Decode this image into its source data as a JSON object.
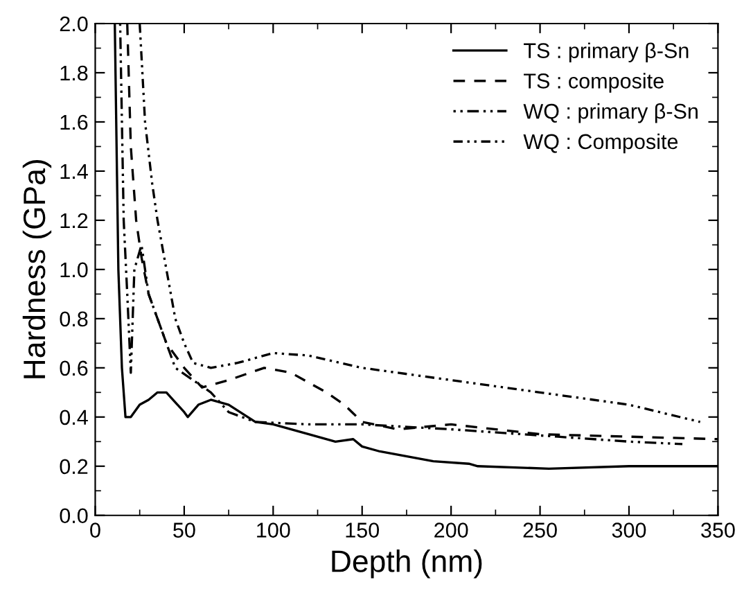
{
  "chart_data": {
    "type": "line",
    "xlabel": "Depth (nm)",
    "ylabel": "Hardness (GPa)",
    "xlim": [
      0,
      350
    ],
    "xticks": [
      0,
      50,
      100,
      150,
      200,
      250,
      300,
      350
    ],
    "ylim": [
      0,
      2.0
    ],
    "yticks": [
      {
        "value": 0,
        "label": "0.0"
      },
      0.2,
      0.4,
      0.6,
      0.8,
      {
        "value": 1,
        "label": "1.0"
      },
      1.2,
      1.4,
      1.6,
      1.8,
      {
        "value": 2,
        "label": "2.0"
      }
    ],
    "grid": false,
    "legend": "top right",
    "series": [
      {
        "name": "TS : primary β-Sn",
        "color": "#000000",
        "line_style": "solid",
        "x": [
          11,
          13,
          15,
          17,
          20,
          25,
          30,
          35,
          40,
          45,
          50,
          52,
          58,
          65,
          75,
          90,
          100,
          120,
          135,
          145,
          150,
          160,
          190,
          210,
          215,
          255,
          300,
          350
        ],
        "values": [
          2.0,
          1.0,
          0.6,
          0.4,
          0.4,
          0.45,
          0.47,
          0.5,
          0.5,
          0.46,
          0.42,
          0.4,
          0.45,
          0.47,
          0.45,
          0.38,
          0.37,
          0.33,
          0.3,
          0.31,
          0.28,
          0.26,
          0.22,
          0.21,
          0.2,
          0.19,
          0.2,
          0.2
        ]
      },
      {
        "name": "TS : composite",
        "color": "#000000",
        "line_style": "dashed",
        "x": [
          18,
          20,
          23,
          26,
          30,
          35,
          40,
          45,
          50,
          60,
          75,
          95,
          110,
          130,
          140,
          150,
          170,
          200,
          250,
          300,
          350
        ],
        "values": [
          2.0,
          1.5,
          1.2,
          1.05,
          0.9,
          0.8,
          0.7,
          0.65,
          0.6,
          0.52,
          0.55,
          0.6,
          0.58,
          0.5,
          0.45,
          0.38,
          0.35,
          0.37,
          0.33,
          0.32,
          0.31
        ]
      },
      {
        "name": "WQ : primary β-Sn",
        "color": "#000000",
        "line_style": "dotted",
        "x": [
          14,
          16,
          18,
          20,
          22,
          26,
          30,
          35,
          40,
          45,
          55,
          65,
          75,
          90,
          120,
          150,
          200,
          260,
          300,
          330
        ],
        "values": [
          2.0,
          1.2,
          0.9,
          0.58,
          1.0,
          1.1,
          0.9,
          0.8,
          0.7,
          0.6,
          0.55,
          0.5,
          0.42,
          0.38,
          0.37,
          0.37,
          0.35,
          0.32,
          0.3,
          0.29
        ]
      },
      {
        "name": "WQ : Composite",
        "color": "#000000",
        "line_style": "dashdot",
        "x": [
          25,
          28,
          32,
          35,
          40,
          45,
          50,
          55,
          65,
          80,
          100,
          120,
          150,
          200,
          250,
          300,
          340
        ],
        "values": [
          2.0,
          1.6,
          1.35,
          1.2,
          1.0,
          0.8,
          0.7,
          0.62,
          0.6,
          0.62,
          0.66,
          0.65,
          0.6,
          0.55,
          0.5,
          0.45,
          0.38
        ]
      }
    ]
  }
}
